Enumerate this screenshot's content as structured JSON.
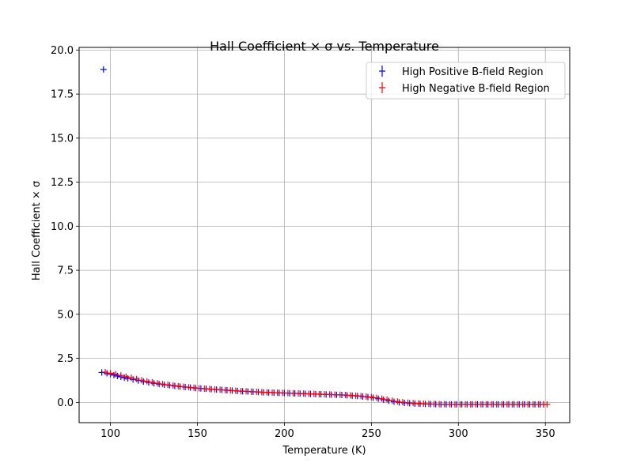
{
  "chart_data": {
    "type": "scatter",
    "title": "Hall Coefficient × σ vs. Temperature",
    "xlabel": "Temperature (K)",
    "ylabel": "Hall Coefficient × σ",
    "xlim": [
      82,
      364
    ],
    "ylim": [
      -1.15,
      20.15
    ],
    "xticks": [
      100,
      150,
      200,
      250,
      300,
      350
    ],
    "xtick_labels": [
      "100",
      "150",
      "200",
      "250",
      "300",
      "350"
    ],
    "yticks": [
      0,
      2.5,
      5,
      7.5,
      10,
      12.5,
      15,
      17.5,
      20
    ],
    "ytick_labels": [
      "0.0",
      "2.5",
      "5.0",
      "7.5",
      "10.0",
      "12.5",
      "15.0",
      "17.5",
      "20.0"
    ],
    "grid": true,
    "legend_position": "top-right",
    "marker": "errorbar-plus",
    "series": [
      {
        "name": "High Positive B-field Region",
        "color": "#0000ff",
        "x": [
          95,
          96,
          98,
          100,
          102,
          104,
          106,
          108,
          110,
          113,
          116,
          119,
          122,
          125,
          128,
          131,
          134,
          137,
          140,
          143,
          146,
          149,
          152,
          155,
          158,
          161,
          164,
          167,
          170,
          173,
          176,
          179,
          182,
          185,
          188,
          191,
          194,
          197,
          200,
          203,
          206,
          209,
          212,
          215,
          218,
          221,
          224,
          227,
          230,
          233,
          236,
          239,
          242,
          245,
          248,
          251,
          254,
          257,
          260,
          263,
          266,
          269,
          272,
          275,
          278,
          281,
          284,
          287,
          290,
          293,
          296,
          299,
          302,
          305,
          308,
          311,
          314,
          317,
          320,
          323,
          326,
          329,
          332,
          335,
          338,
          341,
          344,
          347,
          349
        ],
        "y": [
          1.7,
          18.9,
          1.65,
          1.6,
          1.55,
          1.5,
          1.45,
          1.4,
          1.36,
          1.3,
          1.24,
          1.18,
          1.13,
          1.08,
          1.04,
          1.0,
          0.97,
          0.93,
          0.9,
          0.87,
          0.84,
          0.81,
          0.79,
          0.77,
          0.75,
          0.73,
          0.71,
          0.69,
          0.67,
          0.65,
          0.63,
          0.62,
          0.6,
          0.59,
          0.57,
          0.56,
          0.55,
          0.54,
          0.53,
          0.52,
          0.51,
          0.5,
          0.49,
          0.48,
          0.47,
          0.46,
          0.45,
          0.44,
          0.43,
          0.42,
          0.4,
          0.38,
          0.36,
          0.33,
          0.3,
          0.26,
          0.21,
          0.15,
          0.09,
          0.04,
          0.0,
          -0.03,
          -0.05,
          -0.07,
          -0.08,
          -0.09,
          -0.1,
          -0.1,
          -0.11,
          -0.11,
          -0.11,
          -0.11,
          -0.11,
          -0.11,
          -0.11,
          -0.11,
          -0.11,
          -0.11,
          -0.11,
          -0.11,
          -0.11,
          -0.11,
          -0.11,
          -0.11,
          -0.11,
          -0.11,
          -0.11,
          -0.11,
          -0.11
        ]
      },
      {
        "name": "High Negative B-field Region",
        "color": "#ff0000",
        "x": [
          97,
          100,
          103,
          106,
          109,
          112,
          115,
          118,
          121,
          124,
          127,
          130,
          133,
          136,
          139,
          142,
          145,
          148,
          151,
          154,
          157,
          160,
          163,
          166,
          169,
          172,
          175,
          178,
          181,
          184,
          187,
          190,
          193,
          196,
          199,
          202,
          205,
          208,
          211,
          214,
          217,
          220,
          223,
          226,
          229,
          232,
          235,
          238,
          241,
          244,
          247,
          250,
          253,
          256,
          259,
          262,
          265,
          268,
          271,
          274,
          277,
          280,
          283,
          286,
          289,
          292,
          295,
          298,
          301,
          304,
          307,
          310,
          313,
          316,
          319,
          322,
          325,
          328,
          331,
          334,
          337,
          340,
          343,
          346,
          349,
          351
        ],
        "y": [
          1.72,
          1.66,
          1.6,
          1.53,
          1.46,
          1.4,
          1.33,
          1.26,
          1.2,
          1.14,
          1.09,
          1.04,
          1.0,
          0.96,
          0.92,
          0.89,
          0.86,
          0.83,
          0.8,
          0.78,
          0.76,
          0.74,
          0.72,
          0.7,
          0.68,
          0.66,
          0.64,
          0.63,
          0.61,
          0.6,
          0.58,
          0.57,
          0.56,
          0.55,
          0.54,
          0.53,
          0.52,
          0.51,
          0.5,
          0.49,
          0.48,
          0.47,
          0.46,
          0.45,
          0.44,
          0.43,
          0.42,
          0.4,
          0.38,
          0.36,
          0.33,
          0.3,
          0.26,
          0.21,
          0.16,
          0.1,
          0.05,
          0.01,
          -0.02,
          -0.04,
          -0.06,
          -0.07,
          -0.08,
          -0.09,
          -0.1,
          -0.1,
          -0.11,
          -0.11,
          -0.11,
          -0.11,
          -0.11,
          -0.11,
          -0.11,
          -0.11,
          -0.11,
          -0.11,
          -0.11,
          -0.11,
          -0.11,
          -0.11,
          -0.11,
          -0.11,
          -0.11,
          -0.11,
          -0.11,
          -0.11
        ]
      }
    ]
  }
}
